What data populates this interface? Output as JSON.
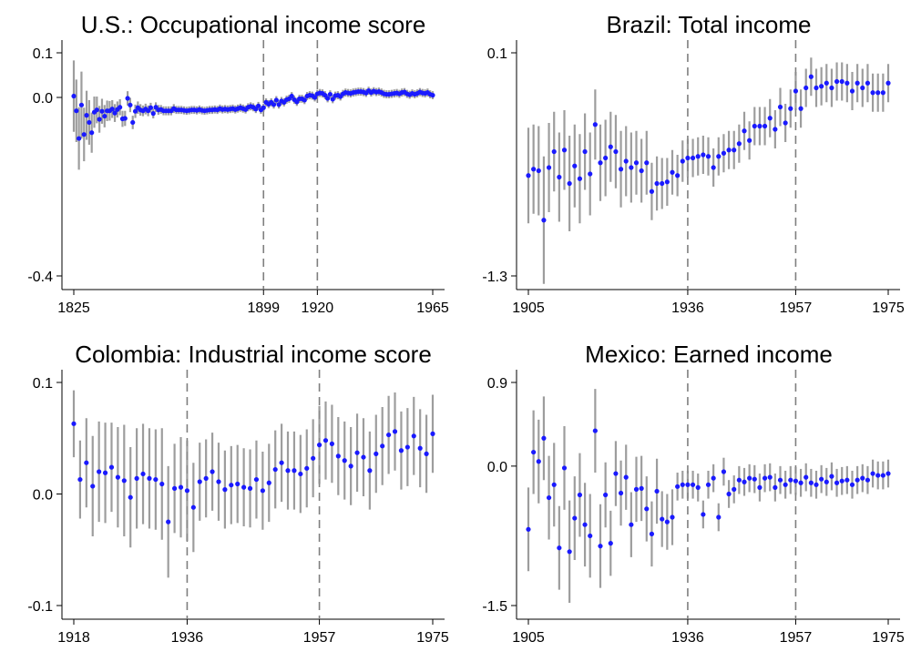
{
  "figure": {
    "marker_color": "#1a1aff",
    "ci_color": "#8c8c8c",
    "vline_color": "#7f7f7f",
    "axis_color": "#000000"
  },
  "chart_data": [
    {
      "id": "us",
      "type": "scatter",
      "title": "U.S.: Occupational income score",
      "xlabel": "",
      "ylabel": "",
      "xlim": [
        1825,
        1965
      ],
      "ylim": [
        -0.4,
        0.1
      ],
      "xticks": [
        1825,
        1899,
        1920,
        1965
      ],
      "yticks": [
        0.1,
        0.0,
        -0.4
      ],
      "ytick_labels": [
        "0.1",
        "0.0",
        "-0.4"
      ],
      "vlines": [
        1899,
        1920
      ],
      "x": [
        1825,
        1826,
        1827,
        1828,
        1829,
        1830,
        1831,
        1832,
        1833,
        1834,
        1835,
        1836,
        1837,
        1838,
        1839,
        1840,
        1841,
        1842,
        1843,
        1844,
        1845,
        1846,
        1847,
        1848,
        1849,
        1850,
        1851,
        1852,
        1853,
        1854,
        1855,
        1856,
        1857,
        1858,
        1859,
        1860,
        1861,
        1862,
        1863,
        1864,
        1865,
        1866,
        1867,
        1868,
        1869,
        1870,
        1871,
        1872,
        1873,
        1874,
        1875,
        1876,
        1877,
        1878,
        1879,
        1880,
        1881,
        1882,
        1883,
        1884,
        1885,
        1886,
        1887,
        1888,
        1889,
        1890,
        1891,
        1892,
        1893,
        1894,
        1895,
        1896,
        1897,
        1898,
        1899,
        1900,
        1901,
        1902,
        1903,
        1904,
        1905,
        1906,
        1907,
        1908,
        1909,
        1910,
        1911,
        1912,
        1913,
        1914,
        1915,
        1916,
        1917,
        1918,
        1919,
        1920,
        1921,
        1922,
        1923,
        1924,
        1925,
        1926,
        1927,
        1928,
        1929,
        1930,
        1931,
        1932,
        1933,
        1934,
        1935,
        1936,
        1937,
        1938,
        1939,
        1940,
        1941,
        1942,
        1943,
        1944,
        1945,
        1946,
        1947,
        1948,
        1949,
        1950,
        1951,
        1952,
        1953,
        1954,
        1955,
        1956,
        1957,
        1958,
        1959,
        1960,
        1961,
        1962,
        1963,
        1964,
        1965
      ],
      "y": [
        0.003,
        -0.03,
        -0.092,
        -0.017,
        -0.083,
        -0.04,
        -0.056,
        -0.079,
        -0.033,
        -0.028,
        -0.049,
        -0.031,
        -0.042,
        -0.03,
        -0.03,
        -0.026,
        -0.035,
        -0.027,
        -0.022,
        -0.048,
        -0.047,
        -0.002,
        -0.017,
        -0.056,
        -0.031,
        -0.023,
        -0.028,
        -0.03,
        -0.026,
        -0.03,
        -0.023,
        -0.036,
        -0.022,
        -0.028,
        -0.027,
        -0.03,
        -0.03,
        -0.03,
        -0.03,
        -0.025,
        -0.028,
        -0.028,
        -0.028,
        -0.029,
        -0.03,
        -0.029,
        -0.028,
        -0.028,
        -0.029,
        -0.027,
        -0.029,
        -0.03,
        -0.029,
        -0.028,
        -0.028,
        -0.027,
        -0.028,
        -0.025,
        -0.027,
        -0.026,
        -0.027,
        -0.026,
        -0.025,
        -0.027,
        -0.025,
        -0.023,
        -0.025,
        -0.027,
        -0.022,
        -0.02,
        -0.022,
        -0.026,
        -0.019,
        -0.028,
        -0.023,
        -0.011,
        -0.015,
        -0.011,
        -0.016,
        -0.006,
        -0.016,
        -0.008,
        -0.011,
        -0.005,
        -0.003,
        0.003,
        -0.005,
        -0.01,
        -0.003,
        -0.003,
        -0.006,
        0.003,
        0.005,
        0.004,
        0.0,
        0.008,
        0.01,
        0.009,
        0.005,
        -0.002,
        0.007,
        -0.004,
        0.004,
        0.005,
        0.002,
        0.008,
        0.011,
        0.01,
        0.009,
        0.011,
        0.012,
        0.013,
        0.013,
        0.012,
        0.01,
        0.015,
        0.011,
        0.014,
        0.012,
        0.013,
        0.011,
        0.008,
        0.007,
        0.007,
        0.008,
        0.009,
        0.01,
        0.008,
        0.011,
        0.012,
        0.008,
        0.006,
        0.009,
        0.007,
        0.009,
        0.012,
        0.01,
        0.009,
        0.011,
        0.007,
        0.005
      ],
      "ci_halfwidth": [
        0.08,
        0.07,
        0.07,
        0.075,
        0.06,
        0.055,
        0.05,
        0.045,
        0.035,
        0.03,
        0.03,
        0.028,
        0.025,
        0.023,
        0.022,
        0.02,
        0.02,
        0.018,
        0.018,
        0.018,
        0.017,
        0.016,
        0.016,
        0.015,
        0.015,
        0.014,
        0.013,
        0.012,
        0.012,
        0.012,
        0.011,
        0.011,
        0.011,
        0.011,
        0.01,
        0.01,
        0.01,
        0.01,
        0.01,
        0.01,
        0.009,
        0.009,
        0.009,
        0.009,
        0.009,
        0.009,
        0.009,
        0.009,
        0.009,
        0.009,
        0.009,
        0.009,
        0.009,
        0.009,
        0.009,
        0.009,
        0.009,
        0.009,
        0.009,
        0.009,
        0.009,
        0.009,
        0.009,
        0.009,
        0.009,
        0.009,
        0.009,
        0.009,
        0.009,
        0.009,
        0.009,
        0.009,
        0.009,
        0.009,
        0.009,
        0.009,
        0.009,
        0.009,
        0.009,
        0.009,
        0.009,
        0.009,
        0.009,
        0.009,
        0.009,
        0.009,
        0.009,
        0.009,
        0.009,
        0.009,
        0.009,
        0.009,
        0.009,
        0.009,
        0.009,
        0.009,
        0.009,
        0.009,
        0.009,
        0.009,
        0.009,
        0.009,
        0.009,
        0.009,
        0.009,
        0.009,
        0.009,
        0.009,
        0.009,
        0.009,
        0.009,
        0.009,
        0.009,
        0.009,
        0.009,
        0.009,
        0.009,
        0.009,
        0.009,
        0.009,
        0.009,
        0.009,
        0.009,
        0.009,
        0.009,
        0.009,
        0.009,
        0.009,
        0.009,
        0.009,
        0.009,
        0.009,
        0.009,
        0.009,
        0.009,
        0.009,
        0.009,
        0.009,
        0.009,
        0.009,
        0.009
      ]
    },
    {
      "id": "brazil",
      "type": "scatter",
      "title": "Brazil: Total income",
      "xlabel": "",
      "ylabel": "",
      "xlim": [
        1905,
        1975
      ],
      "ylim": [
        -1.3,
        0.1
      ],
      "xticks": [
        1905,
        1936,
        1957,
        1975
      ],
      "yticks": [
        0.1,
        -1.3
      ],
      "ytick_labels": [
        "0.1",
        "-1.3"
      ],
      "vlines": [
        1936,
        1957
      ],
      "x": [
        1905,
        1906,
        1907,
        1908,
        1909,
        1910,
        1911,
        1912,
        1913,
        1914,
        1915,
        1916,
        1917,
        1918,
        1919,
        1920,
        1921,
        1922,
        1923,
        1924,
        1925,
        1926,
        1927,
        1928,
        1929,
        1930,
        1931,
        1932,
        1933,
        1934,
        1935,
        1936,
        1937,
        1938,
        1939,
        1940,
        1941,
        1942,
        1943,
        1944,
        1945,
        1946,
        1947,
        1948,
        1949,
        1950,
        1951,
        1952,
        1953,
        1954,
        1955,
        1956,
        1957,
        1958,
        1959,
        1960,
        1961,
        1962,
        1963,
        1964,
        1965,
        1966,
        1967,
        1968,
        1969,
        1970,
        1971,
        1972,
        1973,
        1974,
        1975
      ],
      "y": [
        -0.67,
        -0.63,
        -0.64,
        -0.95,
        -0.62,
        -0.52,
        -0.68,
        -0.51,
        -0.72,
        -0.61,
        -0.69,
        -0.52,
        -0.66,
        -0.35,
        -0.59,
        -0.56,
        -0.49,
        -0.52,
        -0.63,
        -0.58,
        -0.62,
        -0.59,
        -0.64,
        -0.59,
        -0.77,
        -0.72,
        -0.72,
        -0.71,
        -0.65,
        -0.67,
        -0.58,
        -0.56,
        -0.56,
        -0.55,
        -0.54,
        -0.55,
        -0.62,
        -0.55,
        -0.53,
        -0.51,
        -0.51,
        -0.47,
        -0.39,
        -0.45,
        -0.36,
        -0.36,
        -0.36,
        -0.31,
        -0.38,
        -0.24,
        -0.34,
        -0.25,
        -0.14,
        -0.25,
        -0.12,
        -0.05,
        -0.12,
        -0.11,
        -0.09,
        -0.12,
        -0.08,
        -0.08,
        -0.09,
        -0.14,
        -0.09,
        -0.12,
        -0.09,
        -0.15,
        -0.15,
        -0.15,
        -0.09
      ],
      "ci_halfwidth": [
        0.3,
        0.28,
        0.28,
        0.4,
        0.28,
        0.25,
        0.28,
        0.25,
        0.3,
        0.26,
        0.28,
        0.24,
        0.26,
        0.22,
        0.24,
        0.24,
        0.22,
        0.23,
        0.24,
        0.22,
        0.22,
        0.2,
        0.2,
        0.2,
        0.18,
        0.17,
        0.16,
        0.15,
        0.14,
        0.13,
        0.13,
        0.12,
        0.12,
        0.12,
        0.12,
        0.12,
        0.12,
        0.12,
        0.12,
        0.12,
        0.12,
        0.12,
        0.12,
        0.12,
        0.12,
        0.12,
        0.12,
        0.12,
        0.12,
        0.12,
        0.12,
        0.12,
        0.12,
        0.12,
        0.12,
        0.12,
        0.12,
        0.12,
        0.12,
        0.12,
        0.12,
        0.12,
        0.12,
        0.12,
        0.12,
        0.12,
        0.12,
        0.12,
        0.12,
        0.12,
        0.12
      ]
    },
    {
      "id": "colombia",
      "type": "scatter",
      "title": "Colombia: Industrial income score",
      "xlabel": "",
      "ylabel": "",
      "xlim": [
        1918,
        1975
      ],
      "ylim": [
        -0.1,
        0.1
      ],
      "xticks": [
        1918,
        1936,
        1957,
        1975
      ],
      "yticks": [
        0.1,
        0.0,
        -0.1
      ],
      "ytick_labels": [
        "0.1",
        "0.0",
        "-0.1"
      ],
      "vlines": [
        1936,
        1957
      ],
      "x": [
        1918,
        1919,
        1920,
        1921,
        1922,
        1923,
        1924,
        1925,
        1926,
        1927,
        1928,
        1929,
        1930,
        1931,
        1932,
        1933,
        1934,
        1935,
        1936,
        1937,
        1938,
        1939,
        1940,
        1941,
        1942,
        1943,
        1944,
        1945,
        1946,
        1947,
        1948,
        1949,
        1950,
        1951,
        1952,
        1953,
        1954,
        1955,
        1956,
        1957,
        1958,
        1959,
        1960,
        1961,
        1962,
        1963,
        1964,
        1965,
        1966,
        1967,
        1968,
        1969,
        1970,
        1971,
        1972,
        1973,
        1974,
        1975
      ],
      "y": [
        0.063,
        0.013,
        0.028,
        0.007,
        0.02,
        0.019,
        0.024,
        0.015,
        0.012,
        -0.003,
        0.014,
        0.018,
        0.014,
        0.013,
        0.009,
        -0.025,
        0.005,
        0.006,
        0.003,
        -0.012,
        0.011,
        0.014,
        0.02,
        0.011,
        0.004,
        0.008,
        0.009,
        0.006,
        0.005,
        0.013,
        0.003,
        0.01,
        0.022,
        0.028,
        0.021,
        0.021,
        0.018,
        0.023,
        0.032,
        0.044,
        0.048,
        0.045,
        0.034,
        0.03,
        0.025,
        0.037,
        0.033,
        0.021,
        0.036,
        0.043,
        0.053,
        0.056,
        0.039,
        0.042,
        0.052,
        0.041,
        0.036,
        0.054
      ],
      "ci_halfwidth": [
        0.03,
        0.035,
        0.04,
        0.045,
        0.045,
        0.045,
        0.04,
        0.045,
        0.05,
        0.045,
        0.045,
        0.045,
        0.045,
        0.045,
        0.05,
        0.05,
        0.04,
        0.045,
        0.045,
        0.04,
        0.035,
        0.035,
        0.035,
        0.035,
        0.035,
        0.035,
        0.035,
        0.035,
        0.035,
        0.035,
        0.035,
        0.035,
        0.035,
        0.035,
        0.035,
        0.035,
        0.035,
        0.035,
        0.035,
        0.035,
        0.035,
        0.035,
        0.035,
        0.035,
        0.035,
        0.035,
        0.035,
        0.035,
        0.035,
        0.035,
        0.035,
        0.035,
        0.035,
        0.035,
        0.035,
        0.035,
        0.035,
        0.035
      ]
    },
    {
      "id": "mexico",
      "type": "scatter",
      "title": "Mexico: Earned income",
      "xlabel": "",
      "ylabel": "",
      "xlim": [
        1905,
        1975
      ],
      "ylim": [
        -1.5,
        0.9
      ],
      "xticks": [
        1905,
        1936,
        1957,
        1975
      ],
      "yticks": [
        0.9,
        0.0,
        -1.5
      ],
      "ytick_labels": [
        "0.9",
        "0.0",
        "-1.5"
      ],
      "vlines": [
        1936,
        1957
      ],
      "x": [
        1905,
        1906,
        1907,
        1908,
        1909,
        1910,
        1911,
        1912,
        1913,
        1914,
        1915,
        1916,
        1917,
        1918,
        1919,
        1920,
        1921,
        1922,
        1923,
        1924,
        1925,
        1926,
        1927,
        1928,
        1929,
        1930,
        1931,
        1932,
        1933,
        1934,
        1935,
        1936,
        1937,
        1938,
        1939,
        1940,
        1941,
        1942,
        1943,
        1944,
        1945,
        1946,
        1947,
        1948,
        1949,
        1950,
        1951,
        1952,
        1953,
        1954,
        1955,
        1956,
        1957,
        1958,
        1959,
        1960,
        1961,
        1962,
        1963,
        1964,
        1965,
        1966,
        1967,
        1968,
        1969,
        1970,
        1971,
        1972,
        1973,
        1974,
        1975
      ],
      "y": [
        -0.68,
        0.15,
        0.05,
        0.3,
        -0.34,
        -0.2,
        -0.88,
        -0.02,
        -0.92,
        -0.56,
        -0.31,
        -0.63,
        -0.75,
        0.38,
        -0.86,
        -0.31,
        -0.83,
        -0.08,
        -0.29,
        -0.12,
        -0.63,
        -0.25,
        -0.24,
        -0.46,
        -0.73,
        -0.27,
        -0.57,
        -0.6,
        -0.55,
        -0.22,
        -0.2,
        -0.2,
        -0.2,
        -0.23,
        -0.52,
        -0.2,
        -0.13,
        -0.55,
        -0.06,
        -0.3,
        -0.25,
        -0.15,
        -0.17,
        -0.13,
        -0.14,
        -0.23,
        -0.13,
        -0.12,
        -0.23,
        -0.15,
        -0.2,
        -0.15,
        -0.16,
        -0.18,
        -0.12,
        -0.18,
        -0.2,
        -0.14,
        -0.17,
        -0.11,
        -0.18,
        -0.16,
        -0.15,
        -0.2,
        -0.15,
        -0.13,
        -0.15,
        -0.08,
        -0.1,
        -0.1,
        -0.08
      ],
      "ci_halfwidth": [
        0.45,
        0.45,
        0.45,
        0.45,
        0.45,
        0.45,
        0.45,
        0.45,
        0.55,
        0.45,
        0.45,
        0.45,
        0.45,
        0.45,
        0.45,
        0.35,
        0.35,
        0.35,
        0.35,
        0.35,
        0.35,
        0.35,
        0.35,
        0.35,
        0.35,
        0.35,
        0.3,
        0.3,
        0.3,
        0.15,
        0.15,
        0.15,
        0.15,
        0.15,
        0.15,
        0.15,
        0.15,
        0.15,
        0.15,
        0.15,
        0.15,
        0.15,
        0.15,
        0.15,
        0.15,
        0.15,
        0.15,
        0.15,
        0.15,
        0.15,
        0.15,
        0.15,
        0.15,
        0.15,
        0.15,
        0.15,
        0.15,
        0.15,
        0.15,
        0.15,
        0.15,
        0.15,
        0.15,
        0.15,
        0.15,
        0.15,
        0.15,
        0.15,
        0.15,
        0.15,
        0.15
      ]
    }
  ]
}
